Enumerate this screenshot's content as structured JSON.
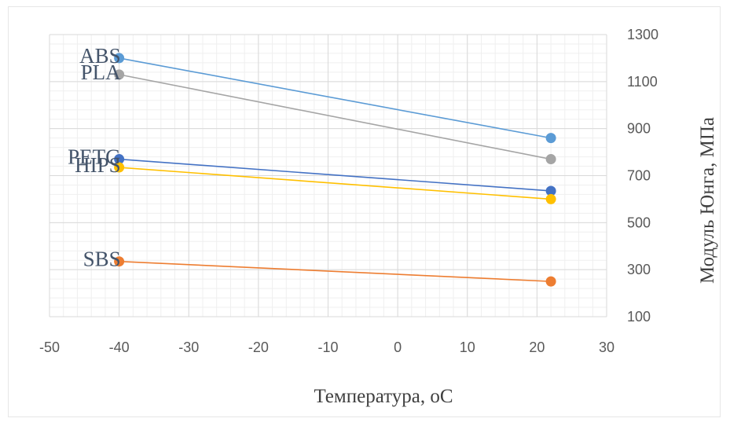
{
  "chart_data": {
    "type": "scatter",
    "xlabel": "Температура, оС",
    "ylabel": "Модуль Юнга, МПа",
    "xlim": [
      -50,
      30
    ],
    "ylim": [
      100,
      1300
    ],
    "x_ticks": [
      -50,
      -40,
      -30,
      -20,
      -10,
      0,
      10,
      20,
      30
    ],
    "y_ticks": [
      100,
      300,
      500,
      700,
      900,
      1100,
      1300
    ],
    "y_axis_position": "right",
    "grid": true,
    "legend": "none",
    "series": [
      {
        "name": "ABS",
        "color": "#5b9bd5",
        "x": [
          -40,
          22
        ],
        "y": [
          1200,
          860
        ]
      },
      {
        "name": "PLA",
        "color": "#a5a5a5",
        "x": [
          -40,
          22
        ],
        "y": [
          1130,
          770
        ]
      },
      {
        "name": "PETG",
        "color": "#4472c4",
        "x": [
          -40,
          22
        ],
        "y": [
          770,
          635
        ]
      },
      {
        "name": "HIPS",
        "color": "#ffc000",
        "x": [
          -40,
          22
        ],
        "y": [
          735,
          600
        ]
      },
      {
        "name": "SBS",
        "color": "#ed7d31",
        "x": [
          -40,
          22
        ],
        "y": [
          335,
          250
        ]
      }
    ]
  }
}
